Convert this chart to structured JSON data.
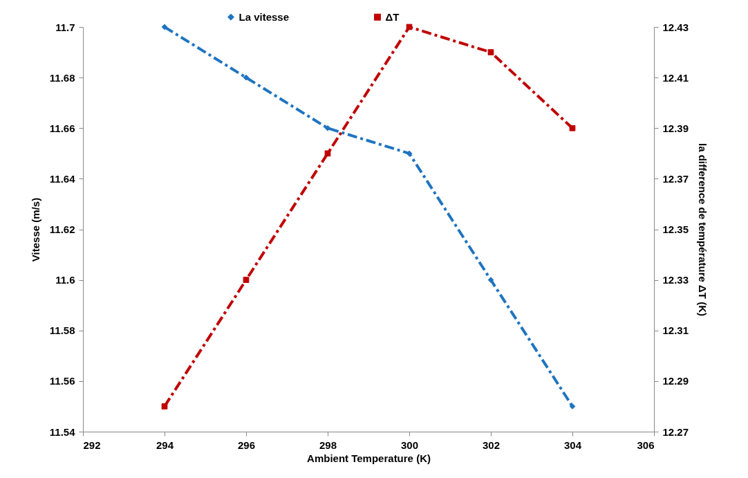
{
  "chart_data": {
    "type": "line",
    "xlabel": "Ambient Temperature (K)",
    "ylabel": "Vitesse (m/s)",
    "y2label": "la difference de température ΔT (K)",
    "x": [
      294,
      296,
      298,
      300,
      302,
      304
    ],
    "xlim": [
      292,
      306
    ],
    "xticks": [
      292,
      294,
      296,
      298,
      300,
      302,
      304,
      306
    ],
    "ylim": [
      11.54,
      11.7
    ],
    "yticks": [
      11.54,
      11.56,
      11.58,
      {
        "value": 11.6,
        "label": "11.6"
      },
      11.62,
      11.64,
      11.66,
      11.68,
      {
        "value": 11.7,
        "label": "11.7"
      }
    ],
    "y2lim": [
      12.27,
      12.43
    ],
    "y2ticks": [
      12.27,
      12.29,
      12.31,
      12.33,
      12.35,
      12.37,
      12.39,
      12.41,
      12.43
    ],
    "series": [
      {
        "name": "La vitesse",
        "color": "#1f74c0",
        "values": [
          11.7,
          11.68,
          11.66,
          11.65,
          11.6,
          11.55
        ],
        "marker": "diamond"
      },
      {
        "name": "ΔT",
        "color": "#c00000",
        "values": [
          12.28,
          12.33,
          12.38,
          12.43,
          12.42,
          12.39
        ],
        "axis": "y2",
        "marker": "square"
      }
    ],
    "line_style": "dashed",
    "grid": false,
    "legend": "top"
  }
}
